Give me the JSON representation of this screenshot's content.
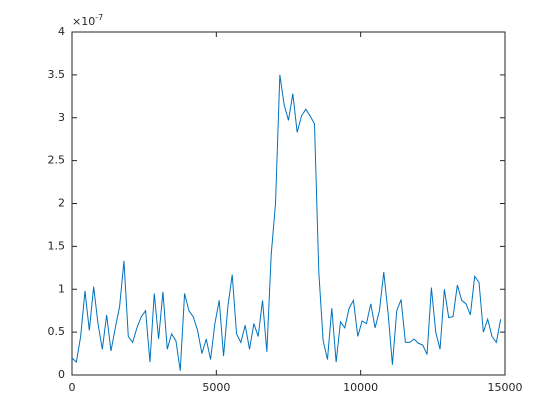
{
  "chart_data": {
    "type": "line",
    "y_exponent_label": {
      "base": "×10",
      "exponent": "-7"
    },
    "x": [
      0,
      150,
      300,
      450,
      600,
      750,
      900,
      1050,
      1200,
      1350,
      1500,
      1650,
      1800,
      1950,
      2100,
      2250,
      2400,
      2550,
      2700,
      2850,
      3000,
      3150,
      3300,
      3450,
      3600,
      3750,
      3900,
      4050,
      4200,
      4350,
      4500,
      4650,
      4800,
      4950,
      5100,
      5250,
      5400,
      5550,
      5700,
      5850,
      6000,
      6150,
      6300,
      6450,
      6600,
      6750,
      6900,
      7050,
      7200,
      7350,
      7500,
      7650,
      7800,
      7950,
      8100,
      8250,
      8400,
      8550,
      8700,
      8850,
      9000,
      9150,
      9300,
      9450,
      9600,
      9750,
      9900,
      10050,
      10200,
      10350,
      10500,
      10650,
      10800,
      10950,
      11100,
      11250,
      11400,
      11550,
      11700,
      11850,
      12000,
      12150,
      12300,
      12450,
      12600,
      12750,
      12900,
      13050,
      13200,
      13350,
      13500,
      13650,
      13800,
      13950,
      14100,
      14250,
      14400,
      14550,
      14700,
      14850
    ],
    "values": [
      0.2,
      0.15,
      0.45,
      0.98,
      0.52,
      1.03,
      0.6,
      0.3,
      0.7,
      0.28,
      0.55,
      0.8,
      1.33,
      0.45,
      0.38,
      0.55,
      0.68,
      0.75,
      0.15,
      0.95,
      0.42,
      0.97,
      0.3,
      0.48,
      0.4,
      0.05,
      0.95,
      0.75,
      0.68,
      0.52,
      0.25,
      0.42,
      0.18,
      0.6,
      0.87,
      0.22,
      0.8,
      1.17,
      0.48,
      0.38,
      0.58,
      0.3,
      0.6,
      0.45,
      0.87,
      0.27,
      1.4,
      2.0,
      3.5,
      3.15,
      2.97,
      3.28,
      2.83,
      3.02,
      3.1,
      3.02,
      2.93,
      1.2,
      0.4,
      0.18,
      0.78,
      0.15,
      0.62,
      0.55,
      0.78,
      0.87,
      0.45,
      0.63,
      0.6,
      0.83,
      0.55,
      0.75,
      1.2,
      0.72,
      0.12,
      0.75,
      0.88,
      0.38,
      0.38,
      0.42,
      0.37,
      0.35,
      0.24,
      1.02,
      0.5,
      0.3,
      1.0,
      0.67,
      0.68,
      1.05,
      0.87,
      0.83,
      0.7,
      1.15,
      1.08,
      0.5,
      0.65,
      0.45,
      0.38,
      0.65
    ],
    "color": "#0072bd",
    "xlim": [
      0,
      15000
    ],
    "xticks": [
      0,
      5000,
      10000,
      15000
    ],
    "ylim": [
      0,
      4
    ],
    "yticks": [
      0,
      0.5,
      1,
      1.5,
      2,
      2.5,
      3,
      3.5,
      4
    ]
  }
}
